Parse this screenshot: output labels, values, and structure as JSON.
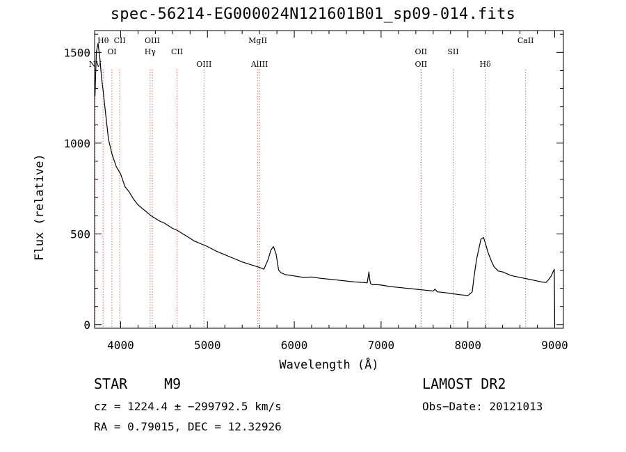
{
  "header": {
    "title": "spec-56214-EG000024N121601B01_sp09-014.fits"
  },
  "info": {
    "object_class": "STAR",
    "subclass": "M9",
    "survey": "LAMOST DR2",
    "cz": "cz = 1224.4 ± −299792.5 km/s",
    "obs_date": "Obs−Date: 20121013",
    "ra_dec": "RA =   0.79015, DEC =  12.32926"
  },
  "chart_data": {
    "type": "line",
    "xlabel": "Wavelength (Å)",
    "ylabel": "Flux (relative)",
    "xlim": [
      3700,
      9100
    ],
    "ylim": [
      -20,
      1620
    ],
    "xticks": [
      4000,
      5000,
      6000,
      7000,
      8000,
      9000
    ],
    "yticks": [
      0,
      500,
      1000,
      1500
    ],
    "line_color": "#000000",
    "marker_color": "#d84a4a",
    "series": [
      {
        "x": [
          3705,
          3720,
          3740,
          3760,
          3780,
          3800,
          3830,
          3860,
          3900,
          3950,
          4000,
          4050,
          4100,
          4150,
          4200,
          4250,
          4300,
          4350,
          4400,
          4450,
          4500,
          4550,
          4600,
          4650,
          4700,
          4750,
          4800,
          4850,
          4900,
          4950,
          5000,
          5100,
          5200,
          5300,
          5400,
          5500,
          5600,
          5650,
          5700,
          5730,
          5760,
          5790,
          5820,
          5850,
          5900,
          6000,
          6100,
          6200,
          6300,
          6400,
          6500,
          6600,
          6700,
          6800,
          6840,
          6860,
          6870,
          6880,
          6900,
          6950,
          7000,
          7100,
          7200,
          7300,
          7400,
          7500,
          7600,
          7620,
          7650,
          7700,
          7800,
          7900,
          8000,
          8050,
          8070,
          8100,
          8150,
          8180,
          8200,
          8230,
          8270,
          8300,
          8350,
          8400,
          8500,
          8600,
          8700,
          8800,
          8850,
          8900,
          8930,
          8960,
          8980,
          8995,
          9000
        ],
        "y": [
          1260,
          1500,
          1550,
          1470,
          1360,
          1280,
          1150,
          1020,
          940,
          870,
          830,
          760,
          730,
          690,
          660,
          640,
          620,
          600,
          585,
          570,
          560,
          545,
          530,
          520,
          505,
          490,
          475,
          460,
          450,
          440,
          430,
          405,
          385,
          365,
          345,
          330,
          315,
          305,
          360,
          410,
          430,
          390,
          300,
          285,
          275,
          268,
          260,
          262,
          255,
          250,
          245,
          240,
          235,
          232,
          230,
          290,
          245,
          225,
          220,
          220,
          218,
          210,
          205,
          200,
          195,
          190,
          185,
          195,
          180,
          178,
          172,
          165,
          160,
          180,
          260,
          360,
          470,
          480,
          450,
          400,
          350,
          320,
          295,
          290,
          270,
          260,
          250,
          240,
          235,
          232,
          248,
          268,
          290,
          305,
          0
        ]
      }
    ],
    "lines": [
      {
        "name": "Hθ",
        "wavelength": 3798,
        "tier": 1
      },
      {
        "name": "NV",
        "wavelength": 3705,
        "tier": 3
      },
      {
        "name": "OI",
        "wavelength": 3900,
        "tier": 2
      },
      {
        "name": "CII",
        "wavelength": 3990,
        "tier": 1
      },
      {
        "name": "OIII",
        "wavelength": 4365,
        "tier": 1
      },
      {
        "name": "Hγ",
        "wavelength": 4340,
        "tier": 2
      },
      {
        "name": "CII",
        "wavelength": 4650,
        "tier": 2
      },
      {
        "name": "OIII",
        "wavelength": 4960,
        "tier": 3
      },
      {
        "name": "MgII",
        "wavelength": 5580,
        "tier": 1
      },
      {
        "name": "AlIII",
        "wavelength": 5600,
        "tier": 3
      },
      {
        "name": "OII",
        "wavelength": 7460,
        "tier": 2
      },
      {
        "name": "OII",
        "wavelength": 7460,
        "tier": 3
      },
      {
        "name": "SII",
        "wavelength": 7830,
        "tier": 2
      },
      {
        "name": "Hδ",
        "wavelength": 8200,
        "tier": 3
      },
      {
        "name": "CaII",
        "wavelength": 8665,
        "tier": 1
      }
    ]
  }
}
